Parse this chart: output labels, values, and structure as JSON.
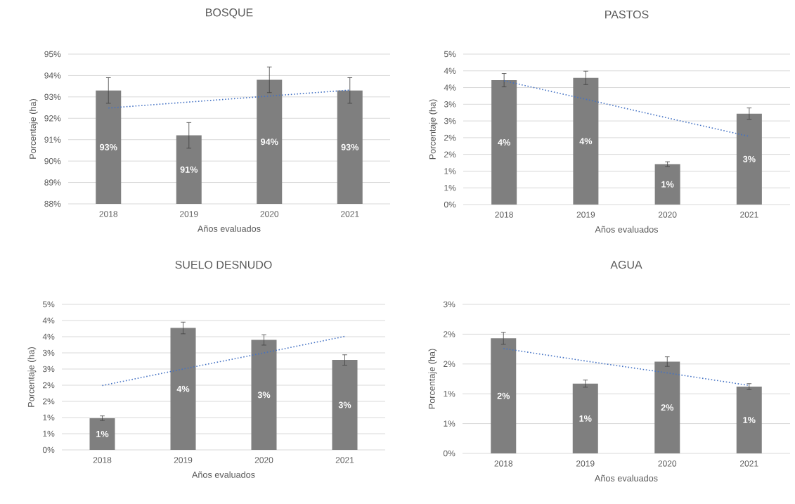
{
  "chart_data": [
    {
      "type": "bar",
      "title": "BOSQUE",
      "xlabel": "Años evaluados",
      "ylabel": "Porcentaje (ha)",
      "categories": [
        "2018",
        "2019",
        "2020",
        "2021"
      ],
      "grid": "y",
      "ylim": [
        88,
        95
      ],
      "yticks": [
        {
          "value": 88,
          "label": "88%"
        },
        {
          "value": 89,
          "label": "89%"
        },
        {
          "value": 90,
          "label": "90%"
        },
        {
          "value": 91,
          "label": "91%"
        },
        {
          "value": 92,
          "label": "92%"
        },
        {
          "value": 93,
          "label": "93%"
        },
        {
          "value": 94,
          "label": "94%"
        },
        {
          "value": 95,
          "label": "95%"
        }
      ],
      "series": [
        {
          "color": "#7f7f7f",
          "values": [
            93.3,
            91.2,
            93.8,
            93.3
          ],
          "errors": [
            0.6,
            0.6,
            0.6,
            0.6
          ],
          "value_labels": [
            "93%",
            "91%",
            "94%",
            "93%"
          ]
        },
        {
          "type": "line",
          "color": "#4472c4",
          "line_style": "dotted",
          "values": [
            92.48,
            92.76,
            93.04,
            93.32
          ]
        }
      ]
    },
    {
      "type": "bar",
      "title": "PASTOS",
      "xlabel": "Años evaluados",
      "ylabel": "Porcentaje (ha)",
      "categories": [
        "2018",
        "2019",
        "2020",
        "2021"
      ],
      "grid": "y",
      "ylim": [
        0,
        4.5
      ],
      "yticks": [
        {
          "value": 0,
          "label": "0%"
        },
        {
          "value": 0.5,
          "label": "1%"
        },
        {
          "value": 1,
          "label": "1%"
        },
        {
          "value": 1.5,
          "label": "2%"
        },
        {
          "value": 2,
          "label": "2%"
        },
        {
          "value": 2.5,
          "label": "3%"
        },
        {
          "value": 3,
          "label": "3%"
        },
        {
          "value": 3.5,
          "label": "4%"
        },
        {
          "value": 4,
          "label": "4%"
        },
        {
          "value": 4.5,
          "label": "5%"
        }
      ],
      "series": [
        {
          "color": "#7f7f7f",
          "values": [
            3.72,
            3.79,
            1.21,
            2.72
          ],
          "errors": [
            0.2,
            0.2,
            0.07,
            0.17
          ],
          "value_labels": [
            "4%",
            "4%",
            "1%",
            "3%"
          ]
        },
        {
          "type": "line",
          "color": "#4472c4",
          "line_style": "dotted",
          "values": [
            3.7,
            3.15,
            2.59,
            2.04
          ]
        }
      ]
    },
    {
      "type": "bar",
      "title": "SUELO DESNUDO",
      "xlabel": "Años evaluados",
      "ylabel": "Porcentaje (ha)",
      "categories": [
        "2018",
        "2019",
        "2020",
        "2021"
      ],
      "grid": "y",
      "ylim": [
        0,
        4.5
      ],
      "yticks": [
        {
          "value": 0,
          "label": "0%"
        },
        {
          "value": 0.5,
          "label": "1%"
        },
        {
          "value": 1,
          "label": "1%"
        },
        {
          "value": 1.5,
          "label": "2%"
        },
        {
          "value": 2,
          "label": "2%"
        },
        {
          "value": 2.5,
          "label": "3%"
        },
        {
          "value": 3,
          "label": "3%"
        },
        {
          "value": 3.5,
          "label": "4%"
        },
        {
          "value": 4,
          "label": "4%"
        },
        {
          "value": 4.5,
          "label": "5%"
        }
      ],
      "series": [
        {
          "color": "#7f7f7f",
          "values": [
            0.98,
            3.77,
            3.4,
            2.78
          ],
          "errors": [
            0.07,
            0.18,
            0.16,
            0.16
          ],
          "value_labels": [
            "1%",
            "4%",
            "3%",
            "3%"
          ]
        },
        {
          "type": "line",
          "color": "#4472c4",
          "line_style": "dotted",
          "values": [
            1.99,
            2.5,
            3.0,
            3.51
          ]
        }
      ]
    },
    {
      "type": "bar",
      "title": "AGUA",
      "xlabel": "Años evaluados",
      "ylabel": "Porcentaje (ha)",
      "categories": [
        "2018",
        "2019",
        "2020",
        "2021"
      ],
      "grid": "y",
      "ylim": [
        0,
        2.5
      ],
      "yticks": [
        {
          "value": 0,
          "label": "0%"
        },
        {
          "value": 0.5,
          "label": "1%"
        },
        {
          "value": 1,
          "label": "1%"
        },
        {
          "value": 1.5,
          "label": "2%"
        },
        {
          "value": 2,
          "label": "2%"
        },
        {
          "value": 2.5,
          "label": "3%"
        }
      ],
      "series": [
        {
          "color": "#7f7f7f",
          "values": [
            1.93,
            1.17,
            1.54,
            1.12
          ],
          "errors": [
            0.1,
            0.06,
            0.08,
            0.05
          ],
          "value_labels": [
            "2%",
            "1%",
            "2%",
            "1%"
          ]
        },
        {
          "type": "line",
          "color": "#4472c4",
          "line_style": "dotted",
          "values": [
            1.76,
            1.55,
            1.35,
            1.14
          ]
        }
      ]
    }
  ]
}
